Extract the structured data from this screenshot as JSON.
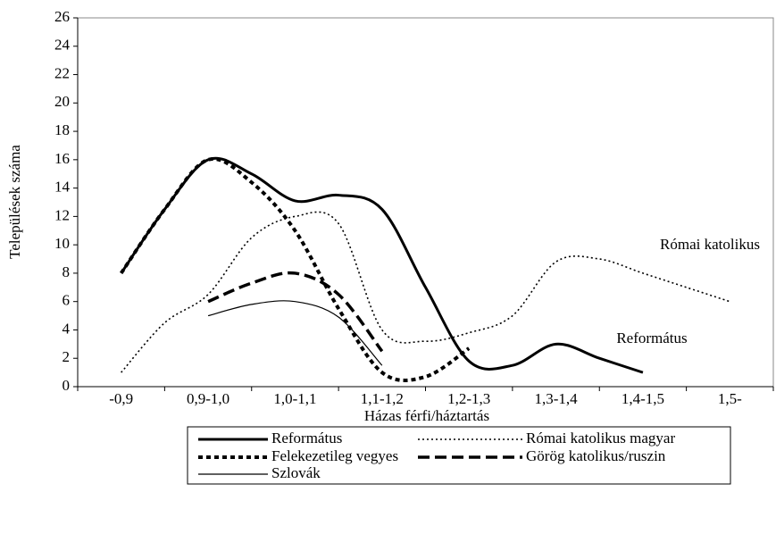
{
  "chart_data": {
    "type": "line",
    "ylabel": "Települések száma",
    "xlabel": "Házas férfi/háztartás",
    "categories": [
      "-0,9",
      null,
      "0,9-1,0",
      null,
      "1,0-1,1",
      null,
      "1,1-1,2",
      null,
      "1,2-1,3",
      null,
      "1,3-1,4",
      null,
      "1,4-1,5",
      null,
      "1,5-"
    ],
    "ylim": [
      0,
      26
    ],
    "yticks": [
      0,
      2,
      4,
      6,
      8,
      10,
      12,
      14,
      16,
      18,
      20,
      22,
      24,
      26
    ],
    "series": [
      {
        "name": "Református",
        "color": "#000000",
        "width": 3,
        "dash": "none",
        "values": [
          8,
          12.5,
          16,
          15,
          13.1,
          13.5,
          12.5,
          7,
          1.8,
          1.5,
          3,
          2,
          1,
          null,
          null
        ]
      },
      {
        "name": "Római katolikus magyar",
        "color": "#000000",
        "width": 1.6,
        "dash": "2,3",
        "values": [
          1,
          4.5,
          6.5,
          10.5,
          12,
          11.5,
          4,
          3.2,
          3.8,
          5,
          8.8,
          9,
          8,
          7,
          6
        ]
      },
      {
        "name": "Felekezetileg vegyes",
        "color": "#000000",
        "width": 4,
        "dash": "5,4",
        "values": [
          8,
          12.5,
          16,
          14.4,
          11,
          5.5,
          1,
          0.7,
          2.7,
          null,
          null,
          null,
          null,
          null,
          null
        ]
      },
      {
        "name": "Görög katolikus/ruszin",
        "color": "#000000",
        "width": 3.5,
        "dash": "13,6",
        "values": [
          null,
          null,
          6,
          7.3,
          8,
          6.5,
          2.5,
          null,
          null,
          null,
          null,
          null,
          null,
          null,
          null
        ]
      },
      {
        "name": "Szlovák",
        "color": "#000000",
        "width": 1.2,
        "dash": "none",
        "values": [
          null,
          null,
          5,
          5.8,
          6,
          4.9,
          1.5,
          null,
          null,
          null,
          null,
          null,
          null,
          null,
          null
        ]
      }
    ],
    "annotations": [
      "Római katolikus",
      "Református"
    ]
  }
}
